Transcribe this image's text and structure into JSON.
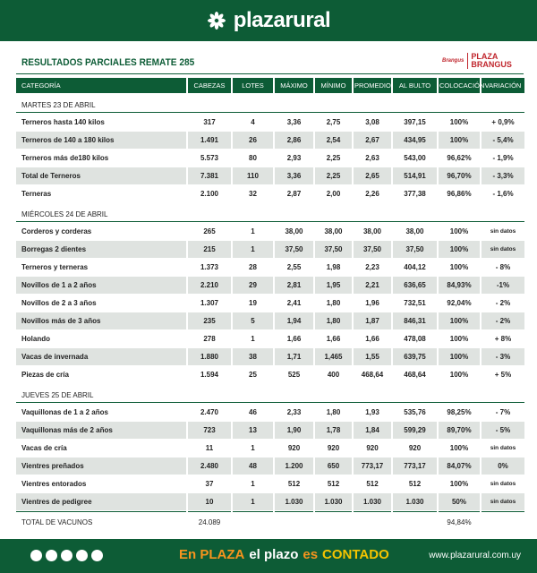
{
  "header": {
    "brand": "plazarural",
    "title": "RESULTADOS PARCIALES REMATE 285",
    "partner_small": "Brangus",
    "partner_1": "PLAZA",
    "partner_2": "BRANGUS"
  },
  "table": {
    "columns": [
      "CATEGORÍA",
      "CABEZAS",
      "LOTES",
      "MÁXIMO",
      "MÍNIMO",
      "PROMEDIO",
      "AL BULTO",
      "COLOCACIÓN",
      "VARIACIÓN"
    ],
    "sections": [
      {
        "label": "MARTES 23 DE ABRIL",
        "rows": [
          [
            "Terneros hasta 140 kilos",
            "317",
            "4",
            "3,36",
            "2,75",
            "3,08",
            "397,15",
            "100%",
            "+ 0,9%"
          ],
          [
            "Terneros de 140 a 180 kilos",
            "1.491",
            "26",
            "2,86",
            "2,54",
            "2,67",
            "434,95",
            "100%",
            "- 5,4%"
          ],
          [
            "Terneros más de180 kilos",
            "5.573",
            "80",
            "2,93",
            "2,25",
            "2,63",
            "543,00",
            "96,62%",
            "- 1,9%"
          ],
          [
            "Total de Terneros",
            "7.381",
            "110",
            "3,36",
            "2,25",
            "2,65",
            "514,91",
            "96,70%",
            "- 3,3%"
          ],
          [
            "Terneras",
            "2.100",
            "32",
            "2,87",
            "2,00",
            "2,26",
            "377,38",
            "96,86%",
            "- 1,6%"
          ]
        ]
      },
      {
        "label": "MIÉRCOLES 24 DE ABRIL",
        "rows": [
          [
            "Corderos y corderas",
            "265",
            "1",
            "38,00",
            "38,00",
            "38,00",
            "38,00",
            "100%",
            "sin datos"
          ],
          [
            "Borregas 2 dientes",
            "215",
            "1",
            "37,50",
            "37,50",
            "37,50",
            "37,50",
            "100%",
            "sin datos"
          ],
          [
            "Terneros y terneras",
            "1.373",
            "28",
            "2,55",
            "1,98",
            "2,23",
            "404,12",
            "100%",
            "- 8%"
          ],
          [
            "Novillos de 1 a 2 años",
            "2.210",
            "29",
            "2,81",
            "1,95",
            "2,21",
            "636,65",
            "84,93%",
            "-1%"
          ],
          [
            "Novillos de 2 a 3 años",
            "1.307",
            "19",
            "2,41",
            "1,80",
            "1,96",
            "732,51",
            "92,04%",
            "- 2%"
          ],
          [
            "Novillos más de 3 años",
            "235",
            "5",
            "1,94",
            "1,80",
            "1,87",
            "846,31",
            "100%",
            "- 2%"
          ],
          [
            "Holando",
            "278",
            "1",
            "1,66",
            "1,66",
            "1,66",
            "478,08",
            "100%",
            "+ 8%"
          ],
          [
            "Vacas de invernada",
            "1.880",
            "38",
            "1,71",
            "1,465",
            "1,55",
            "639,75",
            "100%",
            "- 3%"
          ],
          [
            "Piezas de cría",
            "1.594",
            "25",
            "525",
            "400",
            "468,64",
            "468,64",
            "100%",
            "+ 5%"
          ]
        ]
      },
      {
        "label": "JUEVES 25 DE ABRIL",
        "rows": [
          [
            "Vaquillonas de 1 a 2 años",
            "2.470",
            "46",
            "2,33",
            "1,80",
            "1,93",
            "535,76",
            "98,25%",
            "- 7%"
          ],
          [
            "Vaquillonas más de 2 años",
            "723",
            "13",
            "1,90",
            "1,78",
            "1,84",
            "599,29",
            "89,70%",
            "- 5%"
          ],
          [
            "Vacas de cría",
            "11",
            "1",
            "920",
            "920",
            "920",
            "920",
            "100%",
            "sin datos"
          ],
          [
            "Vientres preñados",
            "2.480",
            "48",
            "1.200",
            "650",
            "773,17",
            "773,17",
            "84,07%",
            "0%"
          ],
          [
            "Vientres entorados",
            "37",
            "1",
            "512",
            "512",
            "512",
            "512",
            "100%",
            "sin datos"
          ],
          [
            "Vientres de pedigree",
            "10",
            "1",
            "1.030",
            "1.030",
            "1.030",
            "1.030",
            "50%",
            "sin datos"
          ]
        ]
      }
    ],
    "total": {
      "label": "TOTAL DE VACUNOS",
      "cabezas": "24.089",
      "colocacion": "94,84%"
    }
  },
  "footer": {
    "slogan": [
      "En PLAZA",
      "el plazo",
      "es",
      "CONTADO"
    ],
    "url": "www.plazarural.com.uy"
  }
}
